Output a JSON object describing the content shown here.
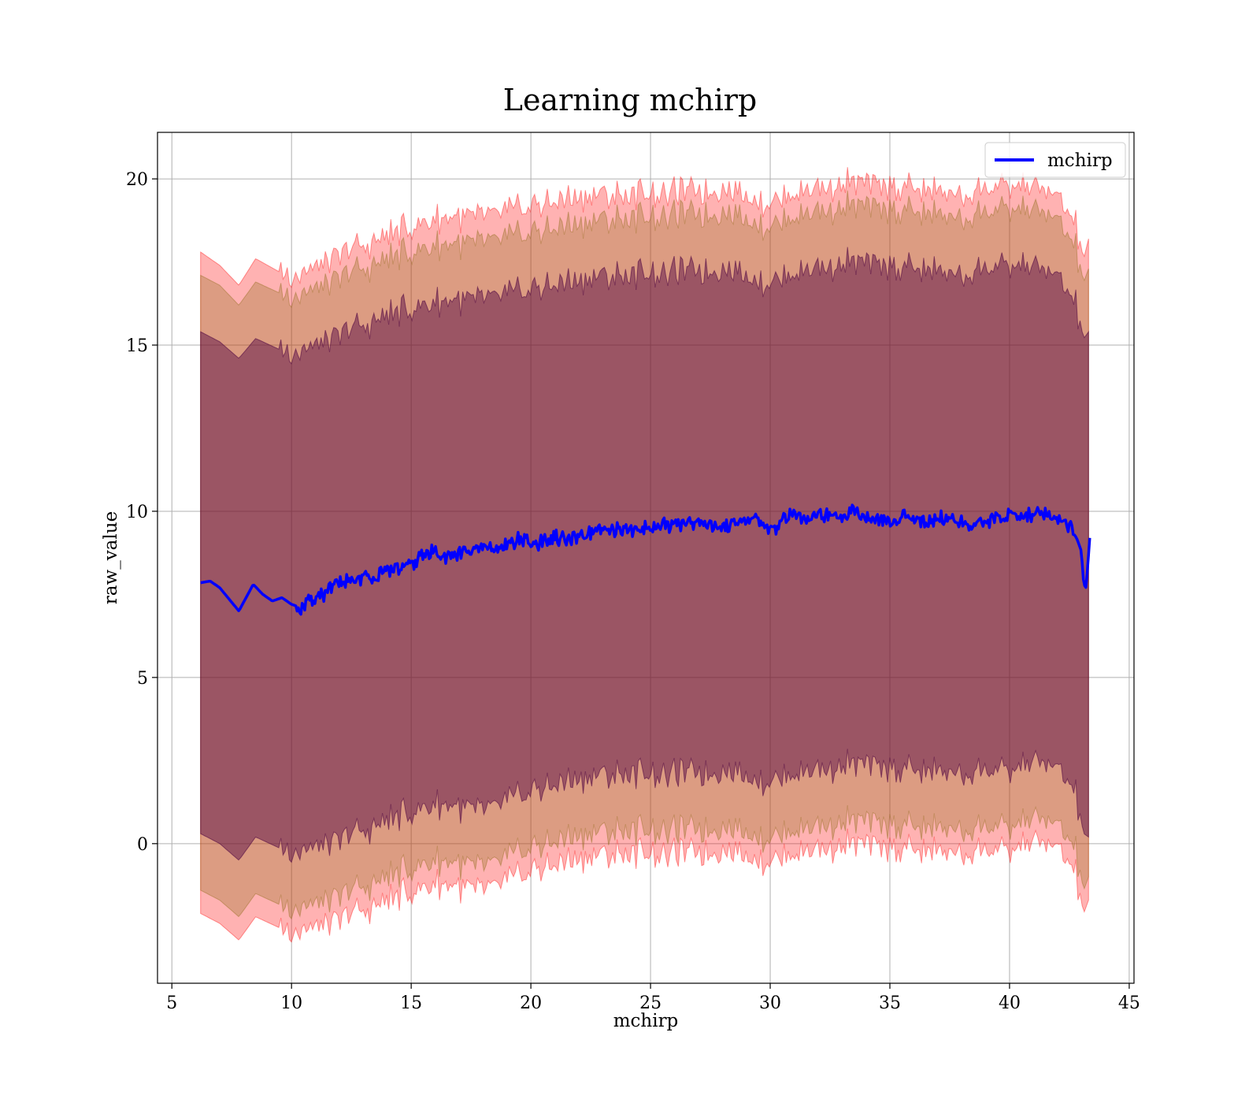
{
  "chart_data": {
    "type": "line",
    "title": "Learning mchirp",
    "xlabel": "mchirp",
    "ylabel": "raw_value",
    "xlim": [
      4.4,
      45.2
    ],
    "ylim": [
      -4.2,
      21.4
    ],
    "xticks": [
      5,
      10,
      15,
      20,
      25,
      30,
      35,
      40,
      45
    ],
    "yticks": [
      0,
      5,
      10,
      15,
      20
    ],
    "grid": true,
    "legend_position": "top-right",
    "series": [
      {
        "name": "mchirp",
        "color": "#0000ff",
        "x": [
          6.2,
          6.6,
          7.0,
          7.4,
          7.8,
          8.1,
          8.4,
          8.8,
          9.2,
          9.6,
          10.0,
          10.4,
          11.0,
          11.5,
          12.0,
          12.5,
          13.0,
          13.5,
          14.0,
          14.5,
          15.0,
          15.5,
          16.0,
          16.5,
          17.0,
          17.5,
          18.0,
          18.5,
          19.0,
          19.5,
          20.0,
          20.5,
          21.0,
          21.5,
          22.0,
          22.5,
          23.0,
          23.5,
          24.0,
          24.5,
          25.0,
          25.5,
          26.0,
          26.5,
          27.0,
          27.5,
          28.0,
          28.5,
          29.0,
          29.5,
          30.0,
          30.5,
          31.0,
          31.5,
          32.0,
          32.5,
          33.0,
          33.5,
          34.0,
          34.5,
          35.0,
          35.5,
          36.0,
          36.5,
          37.0,
          37.5,
          38.0,
          38.5,
          39.0,
          39.5,
          40.0,
          40.5,
          41.0,
          41.5,
          42.0,
          42.5,
          42.8,
          43.0,
          43.1,
          43.2,
          43.35
        ],
        "values": [
          7.85,
          7.9,
          7.7,
          7.35,
          7.0,
          7.4,
          7.8,
          7.5,
          7.3,
          7.4,
          7.2,
          7.1,
          7.4,
          7.6,
          7.8,
          7.9,
          8.0,
          8.0,
          8.2,
          8.3,
          8.4,
          8.7,
          8.8,
          8.6,
          8.7,
          8.8,
          8.9,
          8.8,
          9.0,
          9.2,
          9.0,
          9.1,
          9.2,
          9.1,
          9.2,
          9.3,
          9.4,
          9.4,
          9.5,
          9.4,
          9.5,
          9.6,
          9.6,
          9.7,
          9.6,
          9.6,
          9.5,
          9.7,
          9.8,
          9.7,
          9.3,
          9.8,
          9.9,
          9.8,
          9.9,
          9.9,
          9.8,
          10.1,
          9.8,
          9.7,
          9.7,
          9.8,
          9.8,
          9.7,
          9.8,
          9.7,
          9.7,
          9.6,
          9.7,
          9.8,
          9.9,
          9.8,
          9.9,
          10.0,
          9.8,
          9.5,
          9.2,
          8.8,
          7.8,
          7.7,
          9.2
        ]
      }
    ],
    "bands": [
      {
        "color": "#ff0000",
        "opacity": 0.3,
        "x": [
          6.2,
          7.0,
          7.8,
          8.5,
          10.0,
          12.0,
          14.0,
          16.0,
          18.0,
          20.0,
          22.0,
          24.0,
          26.0,
          28.0,
          30.0,
          32.0,
          34.0,
          36.0,
          38.0,
          40.0,
          41.0,
          42.0,
          42.7,
          43.1,
          43.3
        ],
        "upper": [
          17.8,
          17.4,
          16.8,
          17.6,
          17.0,
          17.7,
          18.3,
          18.8,
          18.9,
          19.2,
          19.4,
          19.5,
          19.6,
          19.7,
          19.3,
          19.8,
          19.9,
          19.7,
          19.5,
          19.8,
          19.7,
          19.4,
          18.8,
          17.6,
          18.2
        ],
        "lower": [
          -2.1,
          -2.4,
          -2.9,
          -2.2,
          -2.7,
          -2.3,
          -1.7,
          -1.2,
          -1.4,
          -0.8,
          -0.5,
          -0.3,
          -0.3,
          -0.2,
          -0.5,
          -0.1,
          0.0,
          -0.2,
          -0.3,
          -0.2,
          0.0,
          -0.2,
          -0.7,
          -2.1,
          -1.7
        ]
      },
      {
        "color": "#8b6914",
        "opacity": 0.3,
        "x": [
          6.2,
          7.0,
          7.8,
          8.5,
          10.0,
          12.0,
          14.0,
          16.0,
          18.0,
          20.0,
          22.0,
          24.0,
          26.0,
          28.0,
          30.0,
          32.0,
          34.0,
          36.0,
          38.0,
          40.0,
          41.0,
          42.0,
          42.7,
          43.1,
          43.3
        ],
        "upper": [
          17.1,
          16.8,
          16.2,
          16.9,
          16.4,
          17.0,
          17.6,
          18.0,
          18.1,
          18.4,
          18.6,
          18.8,
          18.9,
          19.0,
          18.6,
          19.1,
          19.2,
          19.0,
          18.8,
          19.1,
          19.0,
          18.7,
          18.1,
          16.9,
          17.3
        ],
        "lower": [
          -1.4,
          -1.7,
          -2.2,
          -1.5,
          -2.0,
          -1.6,
          -1.0,
          -0.5,
          -0.7,
          -0.1,
          0.2,
          0.4,
          0.4,
          0.5,
          0.2,
          0.6,
          0.7,
          0.5,
          0.4,
          0.5,
          0.7,
          0.5,
          0.0,
          -1.4,
          -1.0
        ]
      },
      {
        "color": "#4b0040",
        "opacity": 0.45,
        "x": [
          6.2,
          7.0,
          7.8,
          8.5,
          10.0,
          12.0,
          14.0,
          16.0,
          18.0,
          20.0,
          22.0,
          24.0,
          26.0,
          28.0,
          30.0,
          32.0,
          34.0,
          36.0,
          38.0,
          40.0,
          41.0,
          42.0,
          42.7,
          43.1,
          43.3
        ],
        "upper": [
          15.4,
          15.1,
          14.6,
          15.2,
          14.7,
          15.3,
          15.9,
          16.3,
          16.4,
          16.7,
          16.9,
          17.1,
          17.2,
          17.3,
          16.9,
          17.4,
          17.5,
          17.3,
          17.1,
          17.4,
          17.3,
          17.0,
          16.4,
          15.2,
          15.4
        ],
        "lower": [
          0.3,
          0.0,
          -0.5,
          0.2,
          -0.3,
          0.1,
          0.7,
          1.2,
          1.0,
          1.6,
          1.9,
          2.1,
          2.1,
          2.2,
          1.9,
          2.3,
          2.4,
          2.2,
          2.1,
          2.2,
          2.4,
          2.2,
          1.7,
          0.3,
          0.2
        ]
      }
    ]
  }
}
